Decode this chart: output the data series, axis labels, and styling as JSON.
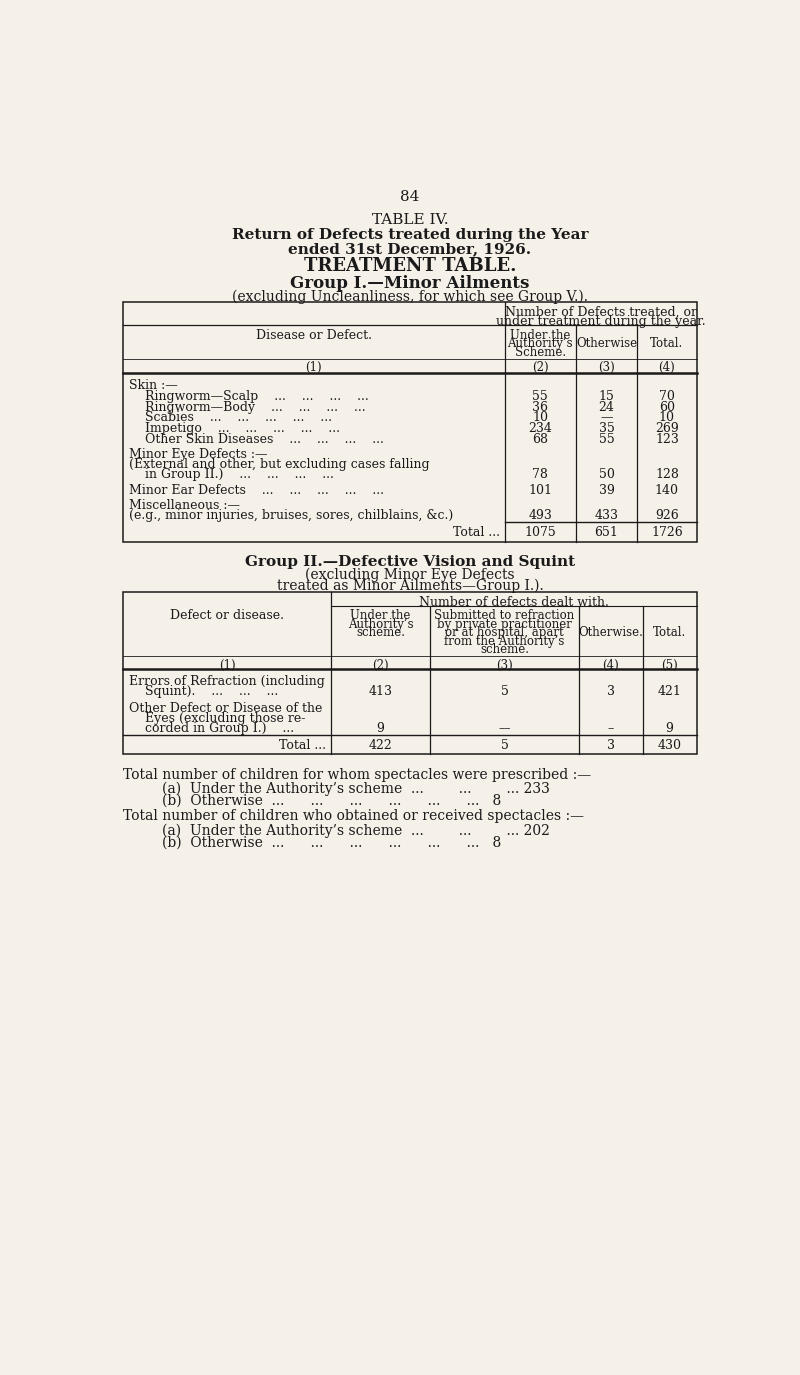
{
  "bg_color": "#f5f0e8",
  "text_color": "#1a1a1a",
  "page_number": "84",
  "title_line1": "TABLE IV.",
  "title_line2": "Return of Defects treated during the Year",
  "title_line3": "ended 31st December, 1926.",
  "title_line4": "TREATMENT TABLE.",
  "group1_heading": "Group I.—Minor Ailments",
  "group1_subheading": "(excluding Uncleanliness, for which see Group V.).",
  "group2_heading_bold": "Group II.—Defective Vision and Squint",
  "group2_heading_normal": " (excluding Minor Eye Defects",
  "group2_subheading": "treated as Minor Ailments—Group I.).",
  "footer_line1": "Total number of children for whom spectacles were prescribed :—",
  "footer_2a": "(a)  Under the Authority’s scheme  ...        ...        ... 233",
  "footer_2b": "(b)  Otherwise  ...      ...      ...      ...      ...      ...   8",
  "footer_line4": "Total number of children who obtained or received spectacles :—",
  "footer_5a": "(a)  Under the Authority’s scheme  ...        ...        ... 202",
  "footer_5b": "(b)  Otherwise  ...      ...      ...      ...      ...      ...   8"
}
